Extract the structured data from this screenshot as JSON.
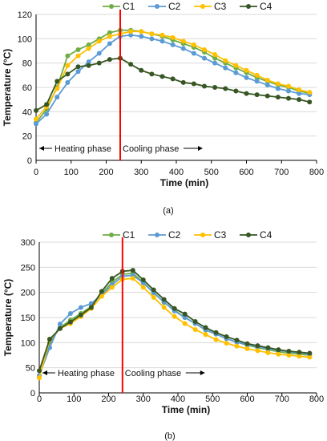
{
  "colors": {
    "C1": "#70ad47",
    "C2": "#5b9bd5",
    "C3": "#ffc000",
    "C4": "#375623",
    "divider": "#ff0000",
    "grid": "#d9d9d9",
    "axis": "#000000"
  },
  "chart_data": [
    {
      "type": "line",
      "caption": "(a)",
      "xlabel": "Time (min)",
      "ylabel": "Temperature (°C)",
      "xlim": [
        0,
        800
      ],
      "ylim": [
        0,
        120
      ],
      "xticks": [
        "0",
        "100",
        "200",
        "300",
        "400",
        "500",
        "600",
        "700",
        "800"
      ],
      "yticks": [
        "0",
        "20",
        "40",
        "60",
        "80",
        "100",
        "120"
      ],
      "grid": "horizontal",
      "legend": "top",
      "divider_x": 240,
      "heating_label": "Heating phase",
      "cooling_label": "Cooling phase",
      "x": [
        0,
        30,
        60,
        90,
        120,
        150,
        180,
        210,
        240,
        270,
        300,
        330,
        360,
        390,
        420,
        450,
        480,
        510,
        540,
        570,
        600,
        630,
        660,
        690,
        720,
        750,
        780
      ],
      "series": [
        {
          "name": "C1",
          "values": [
            31,
            42,
            60,
            86,
            91,
            95,
            100,
            105,
            107,
            107,
            106,
            104,
            102,
            99,
            96,
            93,
            89,
            84,
            80,
            76,
            72,
            68,
            65,
            62,
            60,
            57,
            55
          ]
        },
        {
          "name": "C2",
          "values": [
            30,
            38,
            52,
            64,
            73,
            81,
            88,
            96,
            102,
            103,
            102,
            100,
            98,
            95,
            92,
            88,
            84,
            80,
            76,
            72,
            68,
            65,
            62,
            59,
            57,
            55,
            54
          ]
        },
        {
          "name": "C3",
          "values": [
            34,
            44,
            59,
            78,
            86,
            92,
            98,
            102,
            104,
            106,
            106,
            104,
            103,
            101,
            98,
            95,
            91,
            87,
            82,
            78,
            74,
            70,
            66,
            63,
            61,
            58,
            56
          ]
        },
        {
          "name": "C4",
          "values": [
            41,
            46,
            65,
            71,
            77,
            78,
            80,
            83,
            84,
            79,
            74,
            71,
            69,
            67,
            64,
            63,
            61,
            60,
            59,
            57,
            55,
            54,
            53,
            52,
            51,
            50,
            48
          ]
        }
      ]
    },
    {
      "type": "line",
      "caption": "(b)",
      "xlabel": "Time (min)",
      "ylabel": "Temperature (°C)",
      "xlim": [
        0,
        800
      ],
      "ylim": [
        0,
        300
      ],
      "xticks": [
        "0",
        "100",
        "200",
        "300",
        "400",
        "500",
        "600",
        "700",
        "800"
      ],
      "yticks": [
        "0",
        "50",
        "100",
        "150",
        "200",
        "250",
        "300"
      ],
      "grid": "horizontal",
      "legend": "top",
      "divider_x": 240,
      "heating_label": "Heating phase",
      "cooling_label": "Cooling phase",
      "x": [
        0,
        30,
        60,
        90,
        120,
        150,
        180,
        210,
        240,
        270,
        300,
        330,
        360,
        390,
        420,
        450,
        480,
        510,
        540,
        570,
        600,
        630,
        660,
        690,
        720,
        750,
        780
      ],
      "series": [
        {
          "name": "C1",
          "values": [
            32,
            100,
            130,
            145,
            158,
            172,
            198,
            220,
            236,
            238,
            220,
            200,
            180,
            165,
            150,
            138,
            125,
            117,
            108,
            101,
            95,
            90,
            86,
            82,
            79,
            77,
            75
          ]
        },
        {
          "name": "C2",
          "values": [
            35,
            90,
            137,
            158,
            170,
            178,
            195,
            215,
            232,
            234,
            219,
            199,
            181,
            163,
            150,
            138,
            126,
            117,
            108,
            101,
            96,
            92,
            88,
            85,
            82,
            80,
            77
          ]
        },
        {
          "name": "C3",
          "values": [
            30,
            106,
            128,
            138,
            152,
            168,
            192,
            210,
            226,
            228,
            210,
            190,
            170,
            152,
            138,
            126,
            116,
            106,
            99,
            93,
            88,
            84,
            80,
            77,
            75,
            73,
            71
          ]
        },
        {
          "name": "C4",
          "values": [
            44,
            107,
            128,
            141,
            155,
            170,
            202,
            228,
            242,
            244,
            225,
            205,
            186,
            168,
            157,
            142,
            130,
            120,
            112,
            105,
            98,
            94,
            90,
            86,
            83,
            81,
            79
          ]
        }
      ]
    }
  ]
}
